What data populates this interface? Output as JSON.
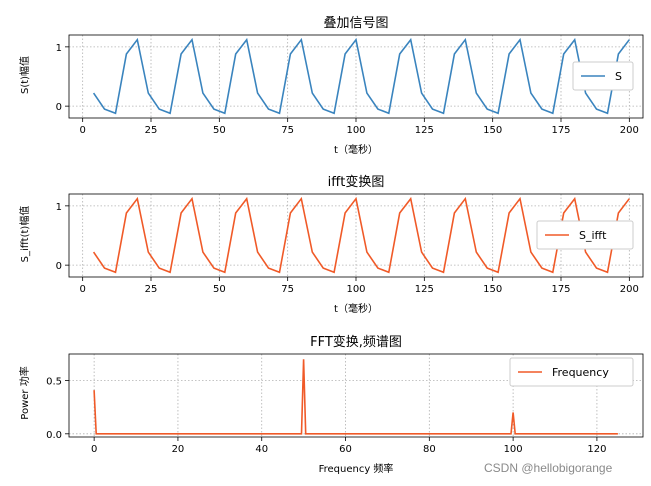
{
  "watermark": "CSDN @hellobigorange",
  "chart_data": [
    {
      "type": "line",
      "title": "叠加信号图",
      "xlabel": "t（毫秒）",
      "ylabel": "S(t)幅值",
      "xlim": [
        -5,
        205
      ],
      "ylim": [
        -0.2,
        1.2
      ],
      "xticks": [
        0,
        25,
        50,
        75,
        100,
        125,
        150,
        175,
        200
      ],
      "yticks": [
        0,
        1
      ],
      "grid": true,
      "legend_position": "right",
      "color": "#3a84be",
      "series": [
        {
          "name": "S",
          "x": [
            4,
            8,
            12,
            16,
            20,
            24,
            28,
            32,
            36,
            40,
            44,
            48,
            52,
            56,
            60,
            64,
            68,
            72,
            76,
            80,
            84,
            88,
            92,
            96,
            100,
            104,
            108,
            112,
            116,
            120,
            124,
            128,
            132,
            136,
            140,
            144,
            148,
            152,
            156,
            160,
            164,
            168,
            172,
            176,
            180,
            184,
            188,
            192,
            196,
            200
          ],
          "y": [
            0.22,
            -0.05,
            -0.12,
            0.88,
            1.12,
            0.22,
            -0.05,
            -0.12,
            0.88,
            1.12,
            0.22,
            -0.05,
            -0.12,
            0.88,
            1.12,
            0.22,
            -0.05,
            -0.12,
            0.88,
            1.12,
            0.22,
            -0.05,
            -0.12,
            0.88,
            1.12,
            0.22,
            -0.05,
            -0.12,
            0.88,
            1.12,
            0.22,
            -0.05,
            -0.12,
            0.88,
            1.12,
            0.22,
            -0.05,
            -0.12,
            0.88,
            1.12,
            0.22,
            -0.05,
            -0.12,
            0.88,
            1.12,
            0.22,
            -0.05,
            -0.12,
            0.88,
            1.12
          ]
        }
      ]
    },
    {
      "type": "line",
      "title": "ifft变换图",
      "xlabel": "t（毫秒）",
      "ylabel": "S_ifft(t)幅值",
      "xlim": [
        -5,
        205
      ],
      "ylim": [
        -0.2,
        1.2
      ],
      "xticks": [
        0,
        25,
        50,
        75,
        100,
        125,
        150,
        175,
        200
      ],
      "yticks": [
        0,
        1
      ],
      "grid": true,
      "legend_position": "right",
      "color": "#f05a28",
      "series": [
        {
          "name": "S_ifft",
          "x": [
            4,
            8,
            12,
            16,
            20,
            24,
            28,
            32,
            36,
            40,
            44,
            48,
            52,
            56,
            60,
            64,
            68,
            72,
            76,
            80,
            84,
            88,
            92,
            96,
            100,
            104,
            108,
            112,
            116,
            120,
            124,
            128,
            132,
            136,
            140,
            144,
            148,
            152,
            156,
            160,
            164,
            168,
            172,
            176,
            180,
            184,
            188,
            192,
            196,
            200
          ],
          "y": [
            0.22,
            -0.05,
            -0.12,
            0.88,
            1.12,
            0.22,
            -0.05,
            -0.12,
            0.88,
            1.12,
            0.22,
            -0.05,
            -0.12,
            0.88,
            1.12,
            0.22,
            -0.05,
            -0.12,
            0.88,
            1.12,
            0.22,
            -0.05,
            -0.12,
            0.88,
            1.12,
            0.22,
            -0.05,
            -0.12,
            0.88,
            1.12,
            0.22,
            -0.05,
            -0.12,
            0.88,
            1.12,
            0.22,
            -0.05,
            -0.12,
            0.88,
            1.12,
            0.22,
            -0.05,
            -0.12,
            0.88,
            1.12,
            0.22,
            -0.05,
            -0.12,
            0.88,
            1.12
          ]
        }
      ]
    },
    {
      "type": "line",
      "title": "FFT变换,频谱图",
      "xlabel": "Frequency 频率",
      "ylabel": "Power 功率",
      "xlim": [
        -6,
        131
      ],
      "ylim": [
        -0.03,
        0.75
      ],
      "xticks": [
        0,
        20,
        40,
        60,
        80,
        100,
        120
      ],
      "yticks": [
        0.0,
        0.5
      ],
      "ytick_labels": [
        "0.0",
        "0.5"
      ],
      "grid": true,
      "legend_position": "top-right",
      "color": "#f05a28",
      "series": [
        {
          "name": "Frequency",
          "x": [
            0,
            0.5,
            49.5,
            50,
            50.5,
            99.5,
            100,
            100.5,
            125
          ],
          "y": [
            0.41,
            0.0,
            0.0,
            0.7,
            0.0,
            0.0,
            0.2,
            0.0,
            0.0
          ]
        }
      ]
    }
  ]
}
